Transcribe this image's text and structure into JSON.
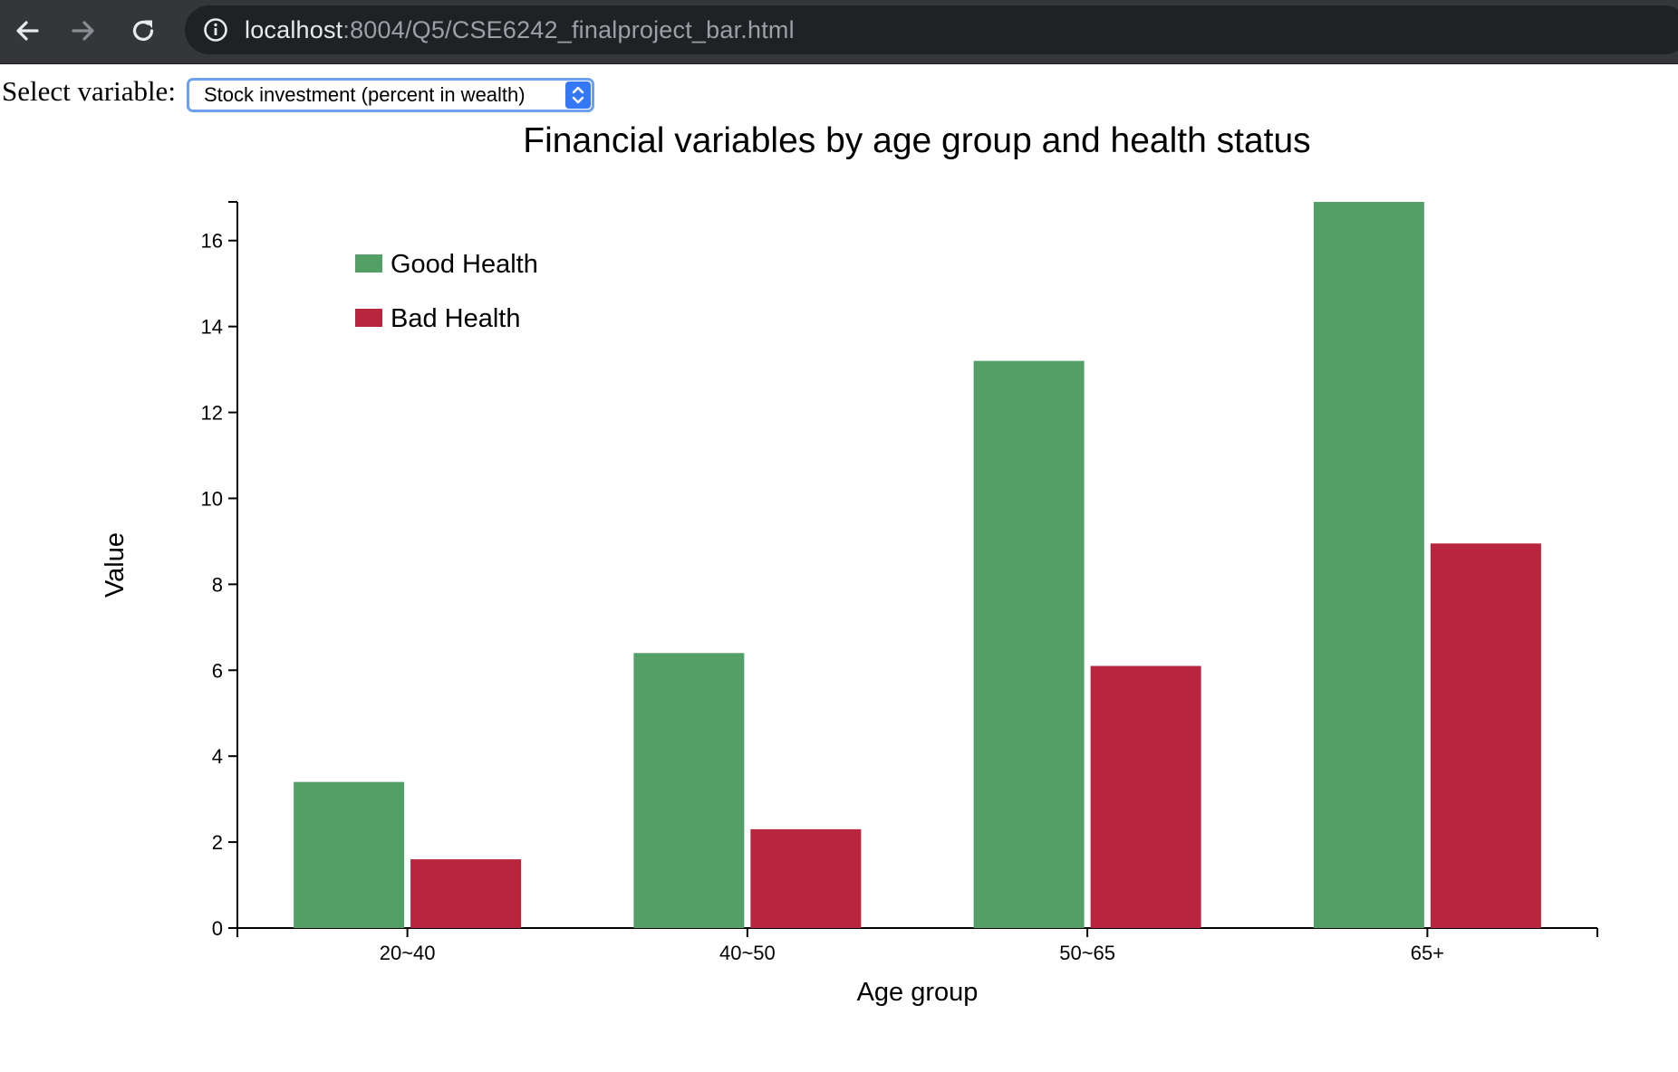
{
  "browser": {
    "url_host": "localhost",
    "url_path": ":8004/Q5/CSE6242_finalproject_bar.html",
    "icons": [
      "back-arrow-icon",
      "forward-arrow-icon",
      "reload-icon",
      "info-icon"
    ]
  },
  "controls": {
    "select_label": "Select variable:",
    "selected_value": "Stock investment (percent in wealth)",
    "accent_color": "#3478f6"
  },
  "chart_data": {
    "type": "bar",
    "title": "Financial variables by age group and health status",
    "xlabel": "Age group",
    "ylabel": "Value",
    "categories": [
      "20~40",
      "40~50",
      "50~65",
      "65+"
    ],
    "series": [
      {
        "name": "Good Health",
        "color": "#52a066",
        "values": [
          3.4,
          6.4,
          13.2,
          16.9
        ]
      },
      {
        "name": "Bad Health",
        "color": "#b9253d",
        "values": [
          1.6,
          2.3,
          6.1,
          8.95
        ]
      }
    ],
    "ylim": [
      0,
      16.9
    ],
    "yticks": [
      0,
      2,
      4,
      6,
      8,
      10,
      12,
      14,
      16
    ],
    "grid": false,
    "legend_position": "top-left"
  }
}
